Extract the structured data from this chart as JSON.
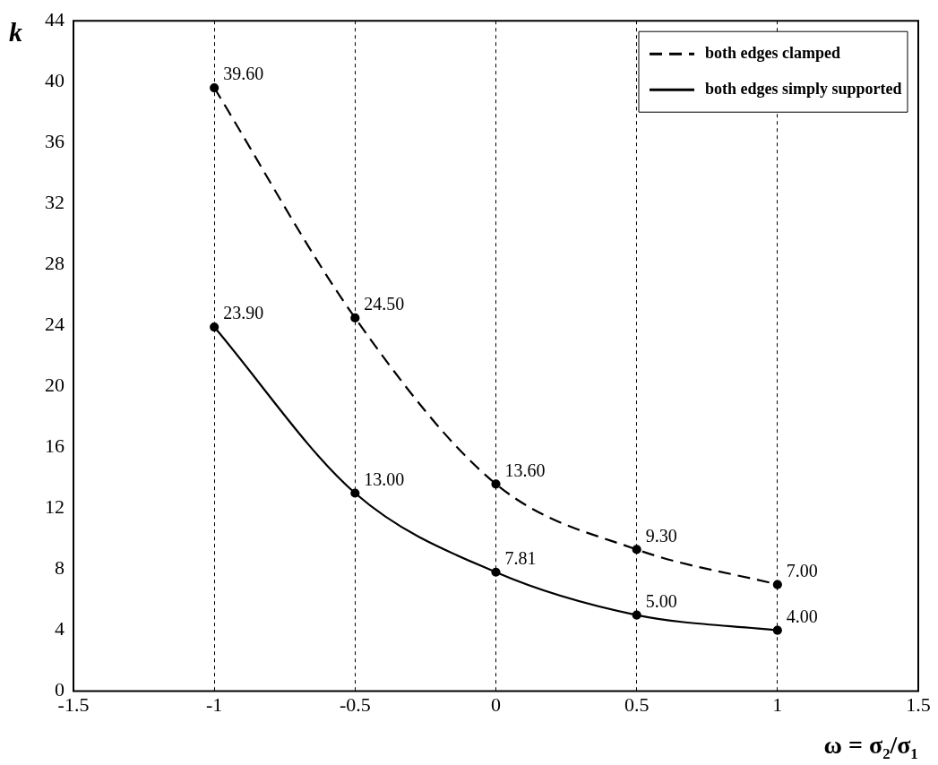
{
  "chart_data": {
    "type": "line",
    "xlabel": "ω = σ₂/σ₁",
    "ylabel": "k",
    "x": [
      -1,
      -0.5,
      0,
      0.5,
      1
    ],
    "series": [
      {
        "name": "both edges clamped",
        "color": "#000000",
        "line_style": "dashed",
        "values": [
          39.6,
          24.5,
          13.6,
          9.3,
          7.0
        ],
        "value_labels": [
          "39.60",
          "24.50",
          "13.60",
          "9.30",
          "7.00"
        ]
      },
      {
        "name": "both edges simply supported",
        "color": "#000000",
        "line_style": "solid",
        "values": [
          23.9,
          13.0,
          7.81,
          5.0,
          4.0
        ],
        "value_labels": [
          "23.90",
          "13.00",
          "7.81",
          "5.00",
          "4.00"
        ]
      }
    ],
    "xlim": [
      -1.5,
      1.5
    ],
    "xticks": [
      -1.5,
      -1,
      -0.5,
      0,
      0.5,
      1,
      1.5
    ],
    "ylim": [
      0,
      44
    ],
    "yticks": [
      0,
      4,
      8,
      12,
      16,
      20,
      24,
      28,
      32,
      36,
      40,
      44
    ],
    "grid": "x",
    "legend": "top right",
    "marker": "circle"
  }
}
